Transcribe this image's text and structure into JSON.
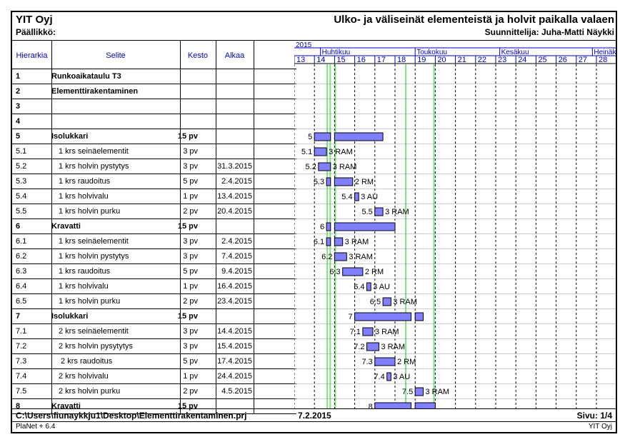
{
  "header": {
    "company": "YIT Oyj",
    "boss_label": "Päällikkö:",
    "title": "Ulko- ja väliseinät elementeistä ja holvit paikalla valaen",
    "designer": "Suunnittelija: Juha-Matti Näykki"
  },
  "columns": {
    "hierarchy": "Hierarkia",
    "description": "Selite",
    "duration": "Kesto",
    "start": "Alkaa"
  },
  "timeline": {
    "year": "2015",
    "months": [
      "Huhtikuu",
      "Toukokuu",
      "Kesäkuu",
      "Heinäkuu"
    ],
    "weeks": [
      "13",
      "14",
      "15",
      "16",
      "17",
      "18",
      "19",
      "20",
      "21",
      "22",
      "23",
      "24",
      "25",
      "26",
      "27",
      "28"
    ]
  },
  "tasks": [
    {
      "id": "1",
      "name": "Runkoaikataulu T3",
      "duration": "",
      "start": "",
      "bold": true
    },
    {
      "id": "2",
      "name": "Elementtirakentaminen",
      "duration": "",
      "start": "",
      "bold": true
    },
    {
      "id": "3",
      "name": "",
      "duration": "",
      "start": "",
      "bold": true
    },
    {
      "id": "4",
      "name": "",
      "duration": "",
      "start": "",
      "bold": true
    },
    {
      "id": "5",
      "name": "Isolukkari",
      "duration": "15 pv",
      "start": "",
      "bold": true
    },
    {
      "id": "5.1",
      "name": "1 krs seinäelementit",
      "duration": "3 pv",
      "start": "",
      "bold": false
    },
    {
      "id": "5.2",
      "name": "1 krs holvin pystytys",
      "duration": "3 pv",
      "start": "31.3.2015",
      "bold": false
    },
    {
      "id": "5.3",
      "name": "1 krs raudoitus",
      "duration": "5 pv",
      "start": "2.4.2015",
      "bold": false
    },
    {
      "id": "5.4",
      "name": "1 krs holvivalu",
      "duration": "1 pv",
      "start": "13.4.2015",
      "bold": false
    },
    {
      "id": "5.5",
      "name": "1 krs holvin purku",
      "duration": "2 pv",
      "start": "20.4.2015",
      "bold": false
    },
    {
      "id": "6",
      "name": "Kravatti",
      "duration": "15 pv",
      "start": "",
      "bold": true
    },
    {
      "id": "6.1",
      "name": "1 krs seinäelementit",
      "duration": "3 pv",
      "start": "2.4.2015",
      "bold": false
    },
    {
      "id": "6.2",
      "name": "1 krs holvin pystytys",
      "duration": "3 pv",
      "start": "7.4.2015",
      "bold": false
    },
    {
      "id": "6.3",
      "name": "1 krs raudoitus",
      "duration": "5 pv",
      "start": "9.4.2015",
      "bold": false
    },
    {
      "id": "6.4",
      "name": "1 krs holvivalu",
      "duration": "1 pv",
      "start": "16.4.2015",
      "bold": false
    },
    {
      "id": "6.5",
      "name": "1 krs holvin purku",
      "duration": "2 pv",
      "start": "23.4.2015",
      "bold": false
    },
    {
      "id": "7",
      "name": "Isolukkari",
      "duration": "15 pv",
      "start": "",
      "bold": true
    },
    {
      "id": "7.1",
      "name": "2 krs seinäelementit",
      "duration": "3 pv",
      "start": "14.4.2015",
      "bold": false
    },
    {
      "id": "7.2",
      "name": "2 krs holvin pysytytys",
      "duration": "3 pv",
      "start": "15.4.2015",
      "bold": false
    },
    {
      "id": "7.3",
      "name": " 2 krs raudoitus",
      "duration": "5 pv",
      "start": "17.4.2015",
      "bold": false
    },
    {
      "id": "7.4",
      "name": "2 krs holvivalu",
      "duration": "1 pv",
      "start": "24.4.2015",
      "bold": false
    },
    {
      "id": "7.5",
      "name": "2 krs holvin purku",
      "duration": "2 pv",
      "start": "4.5.2015",
      "bold": false
    },
    {
      "id": "8",
      "name": "Kravatti",
      "duration": "15 pv",
      "start": "",
      "bold": true
    }
  ],
  "gantt_bars": [
    {
      "row": 4,
      "label": "5",
      "resource": "",
      "segments": [
        [
          14.0,
          14.8
        ],
        [
          15.0,
          17.4
        ]
      ]
    },
    {
      "row": 5,
      "label": "5.1",
      "resource": "3 RAM",
      "segments": [
        [
          14.0,
          14.6
        ]
      ]
    },
    {
      "row": 6,
      "label": "5.2",
      "resource": "3 RAM",
      "segments": [
        [
          14.2,
          14.8
        ]
      ]
    },
    {
      "row": 7,
      "label": "5.3",
      "resource": "2 RM",
      "segments": [
        [
          14.6,
          14.8
        ],
        [
          15.0,
          15.9
        ]
      ]
    },
    {
      "row": 8,
      "label": "5.4",
      "resource": "3 AU",
      "segments": [
        [
          16.0,
          16.2
        ]
      ]
    },
    {
      "row": 9,
      "label": "5.5",
      "resource": "3 RAM",
      "segments": [
        [
          17.0,
          17.4
        ]
      ]
    },
    {
      "row": 10,
      "label": "6",
      "resource": "",
      "segments": [
        [
          14.6,
          14.8
        ],
        [
          15.0,
          18.0
        ]
      ]
    },
    {
      "row": 11,
      "label": "6.1",
      "resource": "3 RAM",
      "segments": [
        [
          14.6,
          14.8
        ],
        [
          15.0,
          15.4
        ]
      ]
    },
    {
      "row": 12,
      "label": "6.2",
      "resource": "3 RAM",
      "segments": [
        [
          15.0,
          15.6
        ]
      ]
    },
    {
      "row": 13,
      "label": "6.3",
      "resource": "2 RM",
      "segments": [
        [
          15.4,
          16.4
        ]
      ]
    },
    {
      "row": 14,
      "label": "6.4",
      "resource": "3 AU",
      "segments": [
        [
          16.6,
          16.8
        ]
      ]
    },
    {
      "row": 15,
      "label": "6.5",
      "resource": "3 RAM",
      "segments": [
        [
          17.4,
          17.8
        ]
      ]
    },
    {
      "row": 16,
      "label": "7",
      "resource": "",
      "segments": [
        [
          16.0,
          18.8
        ],
        [
          19.0,
          19.4
        ]
      ]
    },
    {
      "row": 17,
      "label": "7.1",
      "resource": "3 RAM",
      "segments": [
        [
          16.4,
          16.9
        ]
      ]
    },
    {
      "row": 18,
      "label": "7.2",
      "resource": "3 RAM",
      "segments": [
        [
          16.6,
          17.2
        ]
      ]
    },
    {
      "row": 19,
      "label": "7.3",
      "resource": "2 RM",
      "segments": [
        [
          17.0,
          18.0
        ]
      ]
    },
    {
      "row": 20,
      "label": "7.4",
      "resource": "3 AU",
      "segments": [
        [
          17.6,
          17.8
        ]
      ]
    },
    {
      "row": 21,
      "label": "7.5",
      "resource": "3 RAM",
      "segments": [
        [
          19.0,
          19.4
        ]
      ]
    },
    {
      "row": 22,
      "label": "8",
      "resource": "",
      "segments": [
        [
          17.0,
          18.8
        ],
        [
          19.0,
          20.0
        ]
      ]
    }
  ],
  "colors": {
    "bar_fill": "#8080ff",
    "holiday_green": "#80e080",
    "header_blue": "#0000c0"
  },
  "footer": {
    "path": "C:\\Users\\fiunaykkju1\\Desktop\\Elementtirakentaminen.prj",
    "date": "7.2.2015",
    "page": "Sivu: 1/4",
    "app": "PlaNet + 6.4",
    "company": "YIT Oyj"
  }
}
